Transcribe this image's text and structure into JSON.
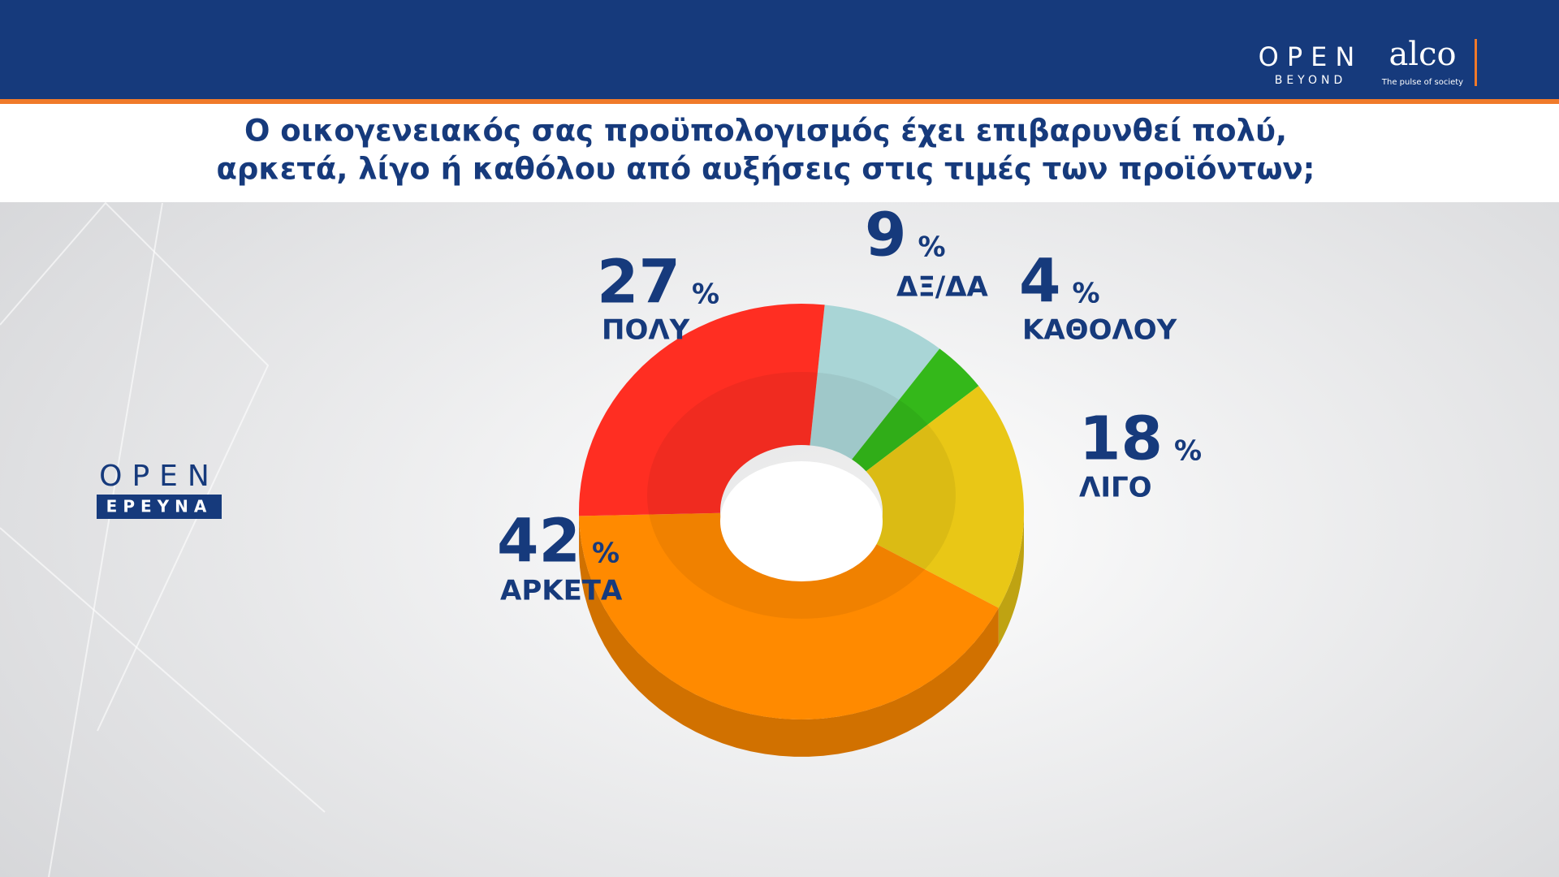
{
  "chart_data": {
    "type": "pie",
    "title": [
      "Ο οικογενειακός σας προϋπολογισμός έχει επιβαρυνθεί πολύ,",
      "αρκετά, λίγο ή καθόλου από αυξήσεις στις τιμές των προϊόντων;"
    ],
    "categories": [
      "ΔΞ/ΔΑ",
      "ΚΑΘΟΛΟΥ",
      "ΛΙΓΟ",
      "ΑΡΚΕΤΑ",
      "ΠΟΛΥ"
    ],
    "values": [
      9,
      4,
      18,
      42,
      27
    ],
    "unit": "%",
    "colors": [
      "#a9d5d6",
      "#34b81a",
      "#e9c716",
      "#ff8a00",
      "#ff2e22"
    ]
  },
  "branding": {
    "header_logo": "OPEN",
    "header_logo_sub": "BEYOND",
    "partner": "alco",
    "partner_tagline": "The pulse of society",
    "side_logo": "OPEN",
    "side_logo_sub": "ΕΡΕΥΝΑ"
  }
}
